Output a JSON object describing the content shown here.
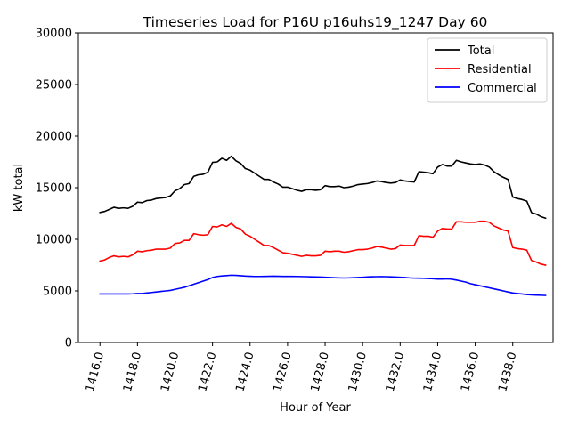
{
  "chart_data": {
    "type": "line",
    "title": "Timeseries Load for P16U p16uhs19_1247  Day 60",
    "xlabel": "Hour of Year",
    "ylabel": "kW total",
    "xlim": [
      1414.85,
      1440.15
    ],
    "ylim": [
      0,
      30000
    ],
    "xticks": [
      1416,
      1418,
      1420,
      1422,
      1424,
      1426,
      1428,
      1430,
      1432,
      1434,
      1436,
      1438
    ],
    "xtick_labels": [
      "1416.0",
      "1418.0",
      "1420.0",
      "1422.0",
      "1424.0",
      "1426.0",
      "1428.0",
      "1430.0",
      "1432.0",
      "1434.0",
      "1436.0",
      "1438.0"
    ],
    "yticks": [
      0,
      5000,
      10000,
      15000,
      20000,
      25000,
      30000
    ],
    "ytick_labels": [
      "0",
      "5000",
      "10000",
      "15000",
      "20000",
      "25000",
      "30000"
    ],
    "legend_position": "upper right",
    "x": [
      1416.0,
      1416.25,
      1416.5,
      1416.75,
      1417.0,
      1417.25,
      1417.5,
      1417.75,
      1418.0,
      1418.25,
      1418.5,
      1418.75,
      1419.0,
      1419.25,
      1419.5,
      1419.75,
      1420.0,
      1420.25,
      1420.5,
      1420.75,
      1421.0,
      1421.25,
      1421.5,
      1421.75,
      1422.0,
      1422.25,
      1422.5,
      1422.75,
      1423.0,
      1423.25,
      1423.5,
      1423.75,
      1424.0,
      1424.25,
      1424.5,
      1424.75,
      1425.0,
      1425.25,
      1425.5,
      1425.75,
      1426.0,
      1426.25,
      1426.5,
      1426.75,
      1427.0,
      1427.25,
      1427.5,
      1427.75,
      1428.0,
      1428.25,
      1428.5,
      1428.75,
      1429.0,
      1429.25,
      1429.5,
      1429.75,
      1430.0,
      1430.25,
      1430.5,
      1430.75,
      1431.0,
      1431.25,
      1431.5,
      1431.75,
      1432.0,
      1432.25,
      1432.5,
      1432.75,
      1433.0,
      1433.25,
      1433.5,
      1433.75,
      1434.0,
      1434.25,
      1434.5,
      1434.75,
      1435.0,
      1435.25,
      1435.5,
      1435.75,
      1436.0,
      1436.25,
      1436.5,
      1436.75,
      1437.0,
      1437.25,
      1437.5,
      1437.75,
      1438.0,
      1438.25,
      1438.5,
      1438.75,
      1439.0,
      1439.25,
      1439.5,
      1439.75
    ],
    "series": [
      {
        "name": "Total",
        "color": "#000000",
        "values": [
          12600,
          12700,
          12900,
          13100,
          13000,
          13050,
          13000,
          13200,
          13600,
          13550,
          13750,
          13800,
          13950,
          14000,
          14050,
          14200,
          14700,
          14900,
          15300,
          15400,
          16100,
          16250,
          16300,
          16500,
          17450,
          17500,
          17850,
          17650,
          18050,
          17600,
          17350,
          16850,
          16700,
          16400,
          16100,
          15800,
          15800,
          15550,
          15350,
          15050,
          15050,
          14900,
          14750,
          14650,
          14800,
          14800,
          14750,
          14800,
          15200,
          15100,
          15100,
          15150,
          15000,
          15050,
          15150,
          15300,
          15350,
          15400,
          15500,
          15650,
          15600,
          15500,
          15450,
          15500,
          15750,
          15650,
          15600,
          15550,
          16550,
          16500,
          16450,
          16350,
          17000,
          17250,
          17100,
          17100,
          17650,
          17500,
          17400,
          17300,
          17250,
          17300,
          17200,
          17000,
          16550,
          16250,
          16000,
          15800,
          14100,
          13950,
          13850,
          13700,
          12600,
          12450,
          12200,
          12050
        ]
      },
      {
        "name": "Residential",
        "color": "#ff0000",
        "values": [
          7900,
          8000,
          8250,
          8400,
          8300,
          8350,
          8300,
          8500,
          8850,
          8800,
          8900,
          8950,
          9050,
          9050,
          9050,
          9150,
          9600,
          9650,
          9900,
          9900,
          10550,
          10450,
          10400,
          10450,
          11250,
          11200,
          11400,
          11250,
          11550,
          11150,
          11000,
          10500,
          10300,
          10000,
          9700,
          9400,
          9400,
          9200,
          8950,
          8700,
          8650,
          8550,
          8450,
          8350,
          8450,
          8400,
          8400,
          8450,
          8850,
          8800,
          8850,
          8850,
          8750,
          8800,
          8900,
          9000,
          9000,
          9050,
          9150,
          9300,
          9250,
          9150,
          9050,
          9100,
          9450,
          9400,
          9400,
          9400,
          10350,
          10300,
          10300,
          10200,
          10800,
          11050,
          11000,
          11000,
          11700,
          11700,
          11650,
          11650,
          11650,
          11750,
          11750,
          11650,
          11300,
          11100,
          10900,
          10800,
          9200,
          9100,
          9050,
          8950,
          7950,
          7800,
          7600,
          7500
        ]
      },
      {
        "name": "Commercial",
        "color": "#0000ff",
        "values": [
          4700,
          4700,
          4700,
          4700,
          4700,
          4700,
          4700,
          4720,
          4750,
          4750,
          4800,
          4850,
          4900,
          4950,
          5000,
          5050,
          5150,
          5250,
          5350,
          5500,
          5650,
          5800,
          5950,
          6100,
          6300,
          6400,
          6450,
          6480,
          6520,
          6500,
          6470,
          6440,
          6420,
          6400,
          6400,
          6410,
          6420,
          6430,
          6420,
          6410,
          6410,
          6410,
          6400,
          6390,
          6380,
          6360,
          6350,
          6340,
          6320,
          6300,
          6280,
          6260,
          6250,
          6260,
          6280,
          6300,
          6320,
          6350,
          6370,
          6380,
          6390,
          6380,
          6360,
          6340,
          6320,
          6300,
          6260,
          6240,
          6230,
          6220,
          6200,
          6180,
          6150,
          6150,
          6170,
          6130,
          6050,
          5950,
          5850,
          5700,
          5600,
          5500,
          5400,
          5300,
          5200,
          5100,
          5000,
          4900,
          4800,
          4750,
          4700,
          4650,
          4620,
          4600,
          4580,
          4560
        ]
      }
    ]
  }
}
